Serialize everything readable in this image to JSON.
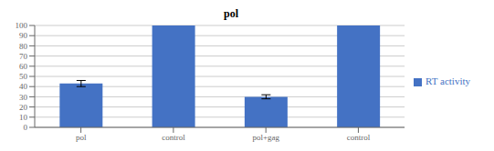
{
  "chart_data": {
    "type": "bar",
    "title": "pol",
    "categories": [
      "pol",
      "control",
      "pol+gag",
      "control"
    ],
    "series": [
      {
        "name": "RT activity",
        "color": "#4472C4",
        "values": [
          43,
          100,
          30,
          100
        ],
        "errors": [
          3,
          0,
          2,
          0
        ]
      }
    ],
    "ylim": [
      0,
      100
    ],
    "yticks": [
      0,
      10,
      20,
      30,
      40,
      50,
      60,
      70,
      80,
      90,
      100
    ],
    "grid": true,
    "legend": "right"
  }
}
